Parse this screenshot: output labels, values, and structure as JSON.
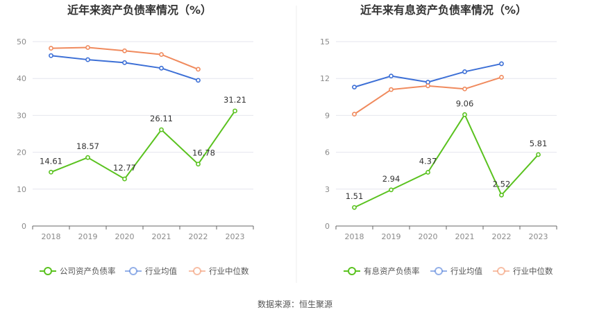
{
  "source_text": "数据来源：恒生聚源",
  "colors": {
    "company": "#5ac21f",
    "avg": "#3c6fd6",
    "median": "#f08a5d",
    "grid": "#e4e6ee",
    "axis": "#666666"
  },
  "chart_data": [
    {
      "type": "line",
      "title": "近年来资产负债率情况（%）",
      "categories": [
        "2018",
        "2019",
        "2020",
        "2021",
        "2022",
        "2023"
      ],
      "ylim": [
        0,
        50
      ],
      "yticks": [
        0,
        10,
        20,
        30,
        40,
        50
      ],
      "grid": true,
      "legend_position": "bottom",
      "series": [
        {
          "name": "公司资产负债率",
          "color_key": "company",
          "values": [
            14.61,
            18.57,
            12.77,
            26.11,
            16.78,
            31.21
          ],
          "labels": [
            "14.61",
            "18.57",
            "12.77",
            "26.11",
            "16.78",
            "31.21"
          ]
        },
        {
          "name": "行业均值",
          "color_key": "avg",
          "values": [
            46.2,
            45.1,
            44.3,
            42.8,
            39.5,
            null
          ]
        },
        {
          "name": "行业中位数",
          "color_key": "median",
          "values": [
            48.2,
            48.4,
            47.5,
            46.5,
            42.5,
            null
          ]
        }
      ]
    },
    {
      "type": "line",
      "title": "近年来有息资产负债率情况（%）",
      "categories": [
        "2018",
        "2019",
        "2020",
        "2021",
        "2022",
        "2023"
      ],
      "ylim": [
        0,
        15
      ],
      "yticks": [
        0,
        3,
        6,
        9,
        12,
        15
      ],
      "grid": true,
      "legend_position": "bottom",
      "series": [
        {
          "name": "有息资产负债率",
          "color_key": "company",
          "values": [
            1.51,
            2.94,
            4.37,
            9.06,
            2.52,
            5.81
          ],
          "labels": [
            "1.51",
            "2.94",
            "4.37",
            "9.06",
            "2.52",
            "5.81"
          ]
        },
        {
          "name": "行业均值",
          "color_key": "avg",
          "values": [
            11.3,
            12.2,
            11.7,
            12.55,
            13.2,
            null
          ]
        },
        {
          "name": "行业中位数",
          "color_key": "median",
          "values": [
            9.1,
            11.1,
            11.4,
            11.15,
            12.1,
            null
          ]
        }
      ]
    }
  ]
}
